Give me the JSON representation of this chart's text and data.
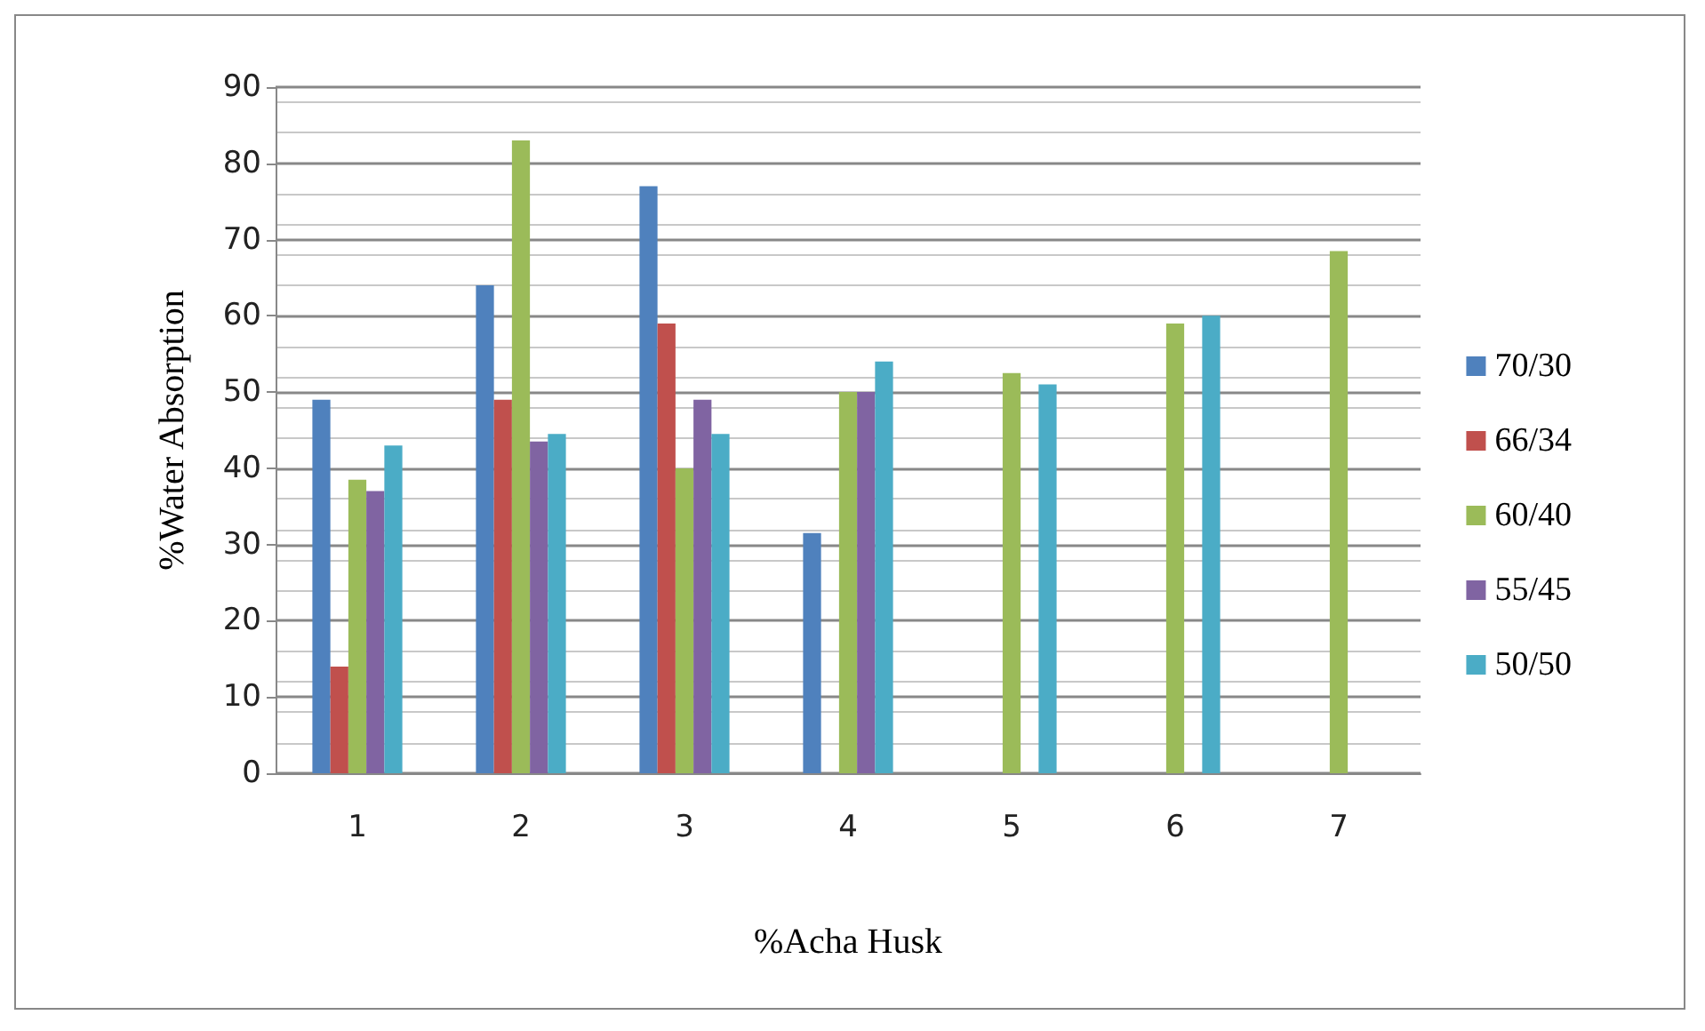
{
  "chart_data": {
    "type": "bar",
    "xlabel": "%Acha Husk",
    "ylabel": "%Water Absorption",
    "categories": [
      "1",
      "2",
      "3",
      "4",
      "5",
      "6",
      "7"
    ],
    "series": [
      {
        "name": "70/30",
        "color": "#4f81bd",
        "values": [
          49,
          64,
          77,
          31.5,
          0,
          0,
          0
        ]
      },
      {
        "name": "66/34",
        "color": "#c0504d",
        "values": [
          14,
          49,
          59,
          0,
          0,
          0,
          0
        ]
      },
      {
        "name": "60/40",
        "color": "#9bbb59",
        "values": [
          38.5,
          83,
          40,
          50,
          52.5,
          59,
          68.5
        ]
      },
      {
        "name": "55/45",
        "color": "#8064a2",
        "values": [
          37,
          43.5,
          49,
          50,
          0,
          0,
          0
        ]
      },
      {
        "name": "50/50",
        "color": "#4bacc6",
        "values": [
          43,
          44.5,
          44.5,
          54,
          51,
          60,
          0
        ]
      }
    ],
    "ylim": [
      0,
      90
    ],
    "yticks": [
      0,
      10,
      20,
      30,
      40,
      50,
      60,
      70,
      80,
      90
    ],
    "grid": "y",
    "legend": "right"
  }
}
